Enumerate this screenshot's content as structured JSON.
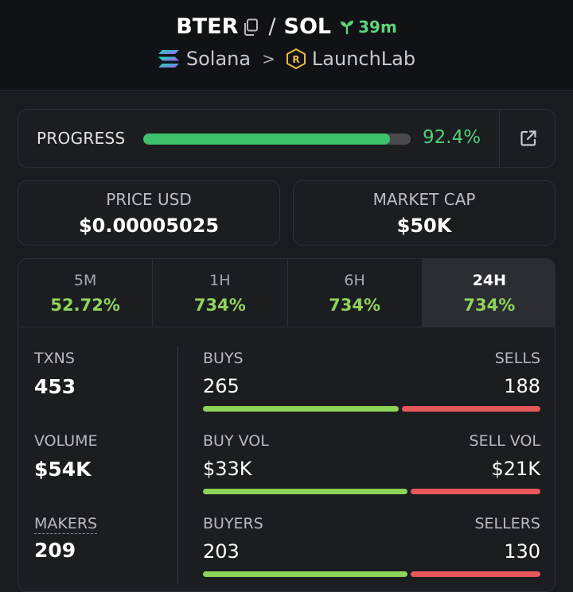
{
  "header": {
    "token": "BTER",
    "quote": "SOL",
    "age": "39m",
    "chain": "Solana",
    "launchpad": "LaunchLab",
    "icons": [
      "copy-icon",
      "sprout-icon",
      "solana-logo-icon",
      "chevron-right-icon",
      "launchlab-logo-icon"
    ]
  },
  "progress": {
    "label": "PROGRESS",
    "value_text": "92.4%",
    "fraction": 0.924,
    "link_icon": "external-link-icon"
  },
  "price": {
    "label": "PRICE USD",
    "value": "$0.00005025"
  },
  "market_cap": {
    "label": "MARKET CAP",
    "value": "$50K"
  },
  "tabs": [
    {
      "label": "5M",
      "value": "52.72%"
    },
    {
      "label": "1H",
      "value": "734%"
    },
    {
      "label": "6H",
      "value": "734%"
    },
    {
      "label": "24H",
      "value": "734%",
      "active": true
    }
  ],
  "metrics": {
    "txns": {
      "label": "TXNS",
      "value": "453"
    },
    "volume": {
      "label": "VOLUME",
      "value": "$54K"
    },
    "makers": {
      "label": "MAKERS",
      "value": "209"
    }
  },
  "splits": {
    "txns": {
      "left_label": "BUYS",
      "left_value": "265",
      "right_label": "SELLS",
      "right_value": "188",
      "buy_fraction": 0.585
    },
    "volume": {
      "left_label": "BUY VOL",
      "left_value": "$33K",
      "right_label": "SELL VOL",
      "right_value": "$21K",
      "buy_fraction": 0.611
    },
    "makers": {
      "left_label": "BUYERS",
      "left_value": "203",
      "right_label": "SELLERS",
      "right_value": "130",
      "buy_fraction": 0.61
    }
  },
  "colors": {
    "accent_green": "#3ec26b",
    "buy_green": "#8fd45a",
    "sell_red": "#e8585a",
    "background": "#1a1b1f"
  }
}
